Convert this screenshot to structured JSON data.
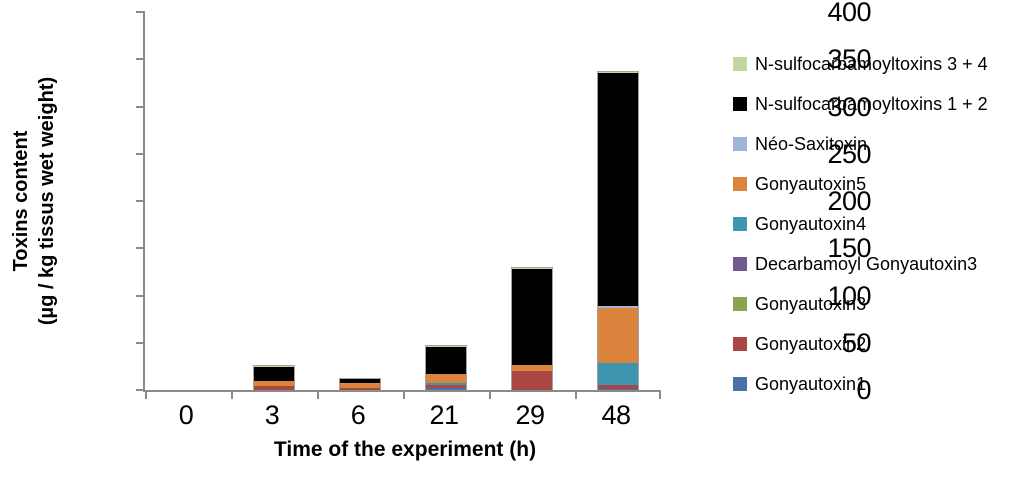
{
  "figure": {
    "y_axis_title_line1": "Toxins content",
    "y_axis_title_line2": "(µg / kg tissus wet weight)"
  },
  "chart_data": {
    "type": "bar",
    "stacked": true,
    "title": "",
    "xlabel": "Time of the experiment (h)",
    "ylabel": "Toxins content (µg / kg tissus wet weight)",
    "ylim": [
      0,
      400
    ],
    "yticks": [
      0,
      50,
      100,
      150,
      200,
      250,
      300,
      350,
      400
    ],
    "grid": false,
    "legend_position": "right",
    "axis_color": "#8a8a8a",
    "bar_outline_color": "#a3a3a3",
    "categories": [
      "0",
      "3",
      "6",
      "21",
      "29",
      "48"
    ],
    "series": [
      {
        "name": "Gonyautoxin1",
        "color": "#4B72A8",
        "values": [
          0,
          0,
          0,
          2,
          0,
          1
        ]
      },
      {
        "name": "Gonyautoxin2",
        "color": "#AA4643",
        "values": [
          0,
          4,
          2,
          3,
          20,
          4
        ]
      },
      {
        "name": "Gonyautoxin3",
        "color": "#89A54E",
        "values": [
          0,
          0,
          0,
          0,
          0,
          0
        ]
      },
      {
        "name": "Decarbamoyl Gonyautoxin3",
        "color": "#71588F",
        "values": [
          0,
          0,
          0,
          0,
          0,
          0
        ]
      },
      {
        "name": "Gonyautoxin4",
        "color": "#3D96AE",
        "values": [
          0,
          0,
          0,
          2,
          0,
          24
        ]
      },
      {
        "name": "Gonyautoxin5",
        "color": "#DB843D",
        "values": [
          0,
          6,
          5,
          10,
          7,
          58
        ]
      },
      {
        "name": "Néo-Saxitoxin",
        "color": "#A3B5D7",
        "values": [
          0,
          0,
          0,
          0,
          0,
          2
        ]
      },
      {
        "name": "N-sulfocarbamoyltoxins 1 + 2",
        "color": "#000000",
        "values": [
          0,
          14,
          5,
          29,
          101,
          246
        ]
      },
      {
        "name": "N-sulfocarbamoyltoxins 3 + 4",
        "color": "#C3D69B",
        "values": [
          0,
          1,
          0,
          1,
          1,
          2
        ]
      }
    ],
    "totals": [
      0,
      25,
      12,
      47,
      129,
      337
    ],
    "legend_top_to_bottom": [
      "N-sulfocarbamoyltoxins 3 + 4",
      "N-sulfocarbamoyltoxins 1 + 2",
      "Néo-Saxitoxin",
      "Gonyautoxin5",
      "Gonyautoxin4",
      "Decarbamoyl Gonyautoxin3",
      "Gonyautoxin3",
      "Gonyautoxin2",
      "Gonyautoxin1"
    ]
  }
}
